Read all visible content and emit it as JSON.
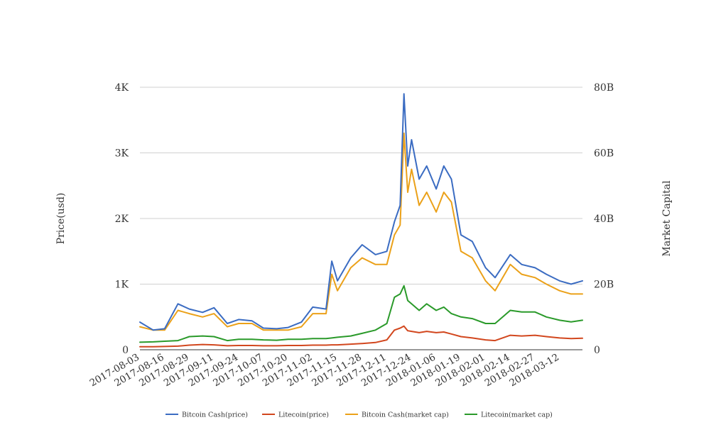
{
  "chart_data": {
    "type": "line",
    "title": "",
    "y_left": {
      "label": "Price(usd)",
      "ticks": [
        "0",
        "1K",
        "2K",
        "3K",
        "4K"
      ],
      "tick_values": [
        0,
        1000,
        2000,
        3000,
        4000
      ],
      "range": [
        0,
        4000
      ]
    },
    "y_right": {
      "label": "Market Capital",
      "ticks": [
        "0",
        "20B",
        "40B",
        "60B",
        "80B"
      ],
      "tick_values": [
        0,
        20,
        40,
        60,
        80
      ],
      "unit": "billions",
      "range": [
        0,
        80
      ]
    },
    "x_tick_labels": [
      "2017-08-03",
      "2017-08-16",
      "2017-08-29",
      "2017-09-11",
      "2017-09-24",
      "2017-10-07",
      "2017-10-20",
      "2017-11-02",
      "2017-11-15",
      "2017-11-28",
      "2017-12-11",
      "2017-12-24",
      "2018-01-06",
      "2018-01-19",
      "2018-02-01",
      "2018-02-14",
      "2018-02-27",
      "2018-03-12"
    ],
    "x": [
      "2017-08-03",
      "2017-08-10",
      "2017-08-16",
      "2017-08-23",
      "2017-08-29",
      "2017-09-05",
      "2017-09-11",
      "2017-09-18",
      "2017-09-24",
      "2017-10-01",
      "2017-10-07",
      "2017-10-14",
      "2017-10-20",
      "2017-10-27",
      "2017-11-02",
      "2017-11-09",
      "2017-11-12",
      "2017-11-15",
      "2017-11-22",
      "2017-11-28",
      "2017-12-05",
      "2017-12-11",
      "2017-12-15",
      "2017-12-18",
      "2017-12-20",
      "2017-12-22",
      "2017-12-24",
      "2017-12-28",
      "2018-01-01",
      "2018-01-06",
      "2018-01-10",
      "2018-01-14",
      "2018-01-19",
      "2018-01-25",
      "2018-02-01",
      "2018-02-06",
      "2018-02-14",
      "2018-02-20",
      "2018-02-27",
      "2018-03-05",
      "2018-03-12",
      "2018-03-18",
      "2018-03-24"
    ],
    "grid": true,
    "legend_position": "bottom",
    "series": [
      {
        "name": "Bitcoin Cash(price)",
        "axis": "left",
        "color": "#3b6cc2",
        "values": [
          420,
          300,
          320,
          700,
          620,
          570,
          640,
          400,
          460,
          440,
          330,
          320,
          340,
          420,
          650,
          620,
          1350,
          1050,
          1400,
          1600,
          1450,
          1500,
          1950,
          2200,
          3900,
          2800,
          3200,
          2600,
          2800,
          2450,
          2800,
          2600,
          1750,
          1650,
          1250,
          1100,
          1450,
          1300,
          1250,
          1150,
          1050,
          1000,
          1050
        ]
      },
      {
        "name": "Litecoin(price)",
        "axis": "left",
        "color": "#d2471e",
        "values": [
          45,
          45,
          50,
          55,
          70,
          80,
          75,
          60,
          65,
          65,
          60,
          60,
          65,
          65,
          70,
          70,
          75,
          75,
          85,
          95,
          110,
          150,
          300,
          330,
          360,
          290,
          280,
          260,
          280,
          260,
          270,
          240,
          200,
          180,
          150,
          140,
          220,
          210,
          220,
          200,
          180,
          170,
          175
        ]
      },
      {
        "name": "Bitcoin Cash(market cap)",
        "axis": "right",
        "color": "#eba119",
        "values": [
          7,
          6,
          6,
          12,
          11,
          10,
          11,
          7,
          8,
          8,
          6,
          6,
          6,
          7,
          11,
          11,
          23,
          18,
          25,
          28,
          26,
          26,
          35,
          38,
          66,
          48,
          55,
          44,
          48,
          42,
          48,
          45,
          30,
          28,
          21,
          18,
          26,
          23,
          22,
          20,
          18,
          17,
          17
        ]
      },
      {
        "name": "Litecoin(market cap)",
        "axis": "right",
        "color": "#2a9a2a",
        "values": [
          2.3,
          2.4,
          2.6,
          2.8,
          4,
          4.2,
          4,
          2.8,
          3.2,
          3.2,
          3,
          2.9,
          3.2,
          3.2,
          3.4,
          3.4,
          3.6,
          3.8,
          4.2,
          5,
          6,
          8,
          16,
          17,
          19.5,
          15,
          14,
          12,
          14,
          12,
          13,
          11,
          10,
          9.5,
          8,
          8,
          12,
          11.5,
          11.5,
          10,
          9,
          8.5,
          9
        ]
      }
    ]
  }
}
